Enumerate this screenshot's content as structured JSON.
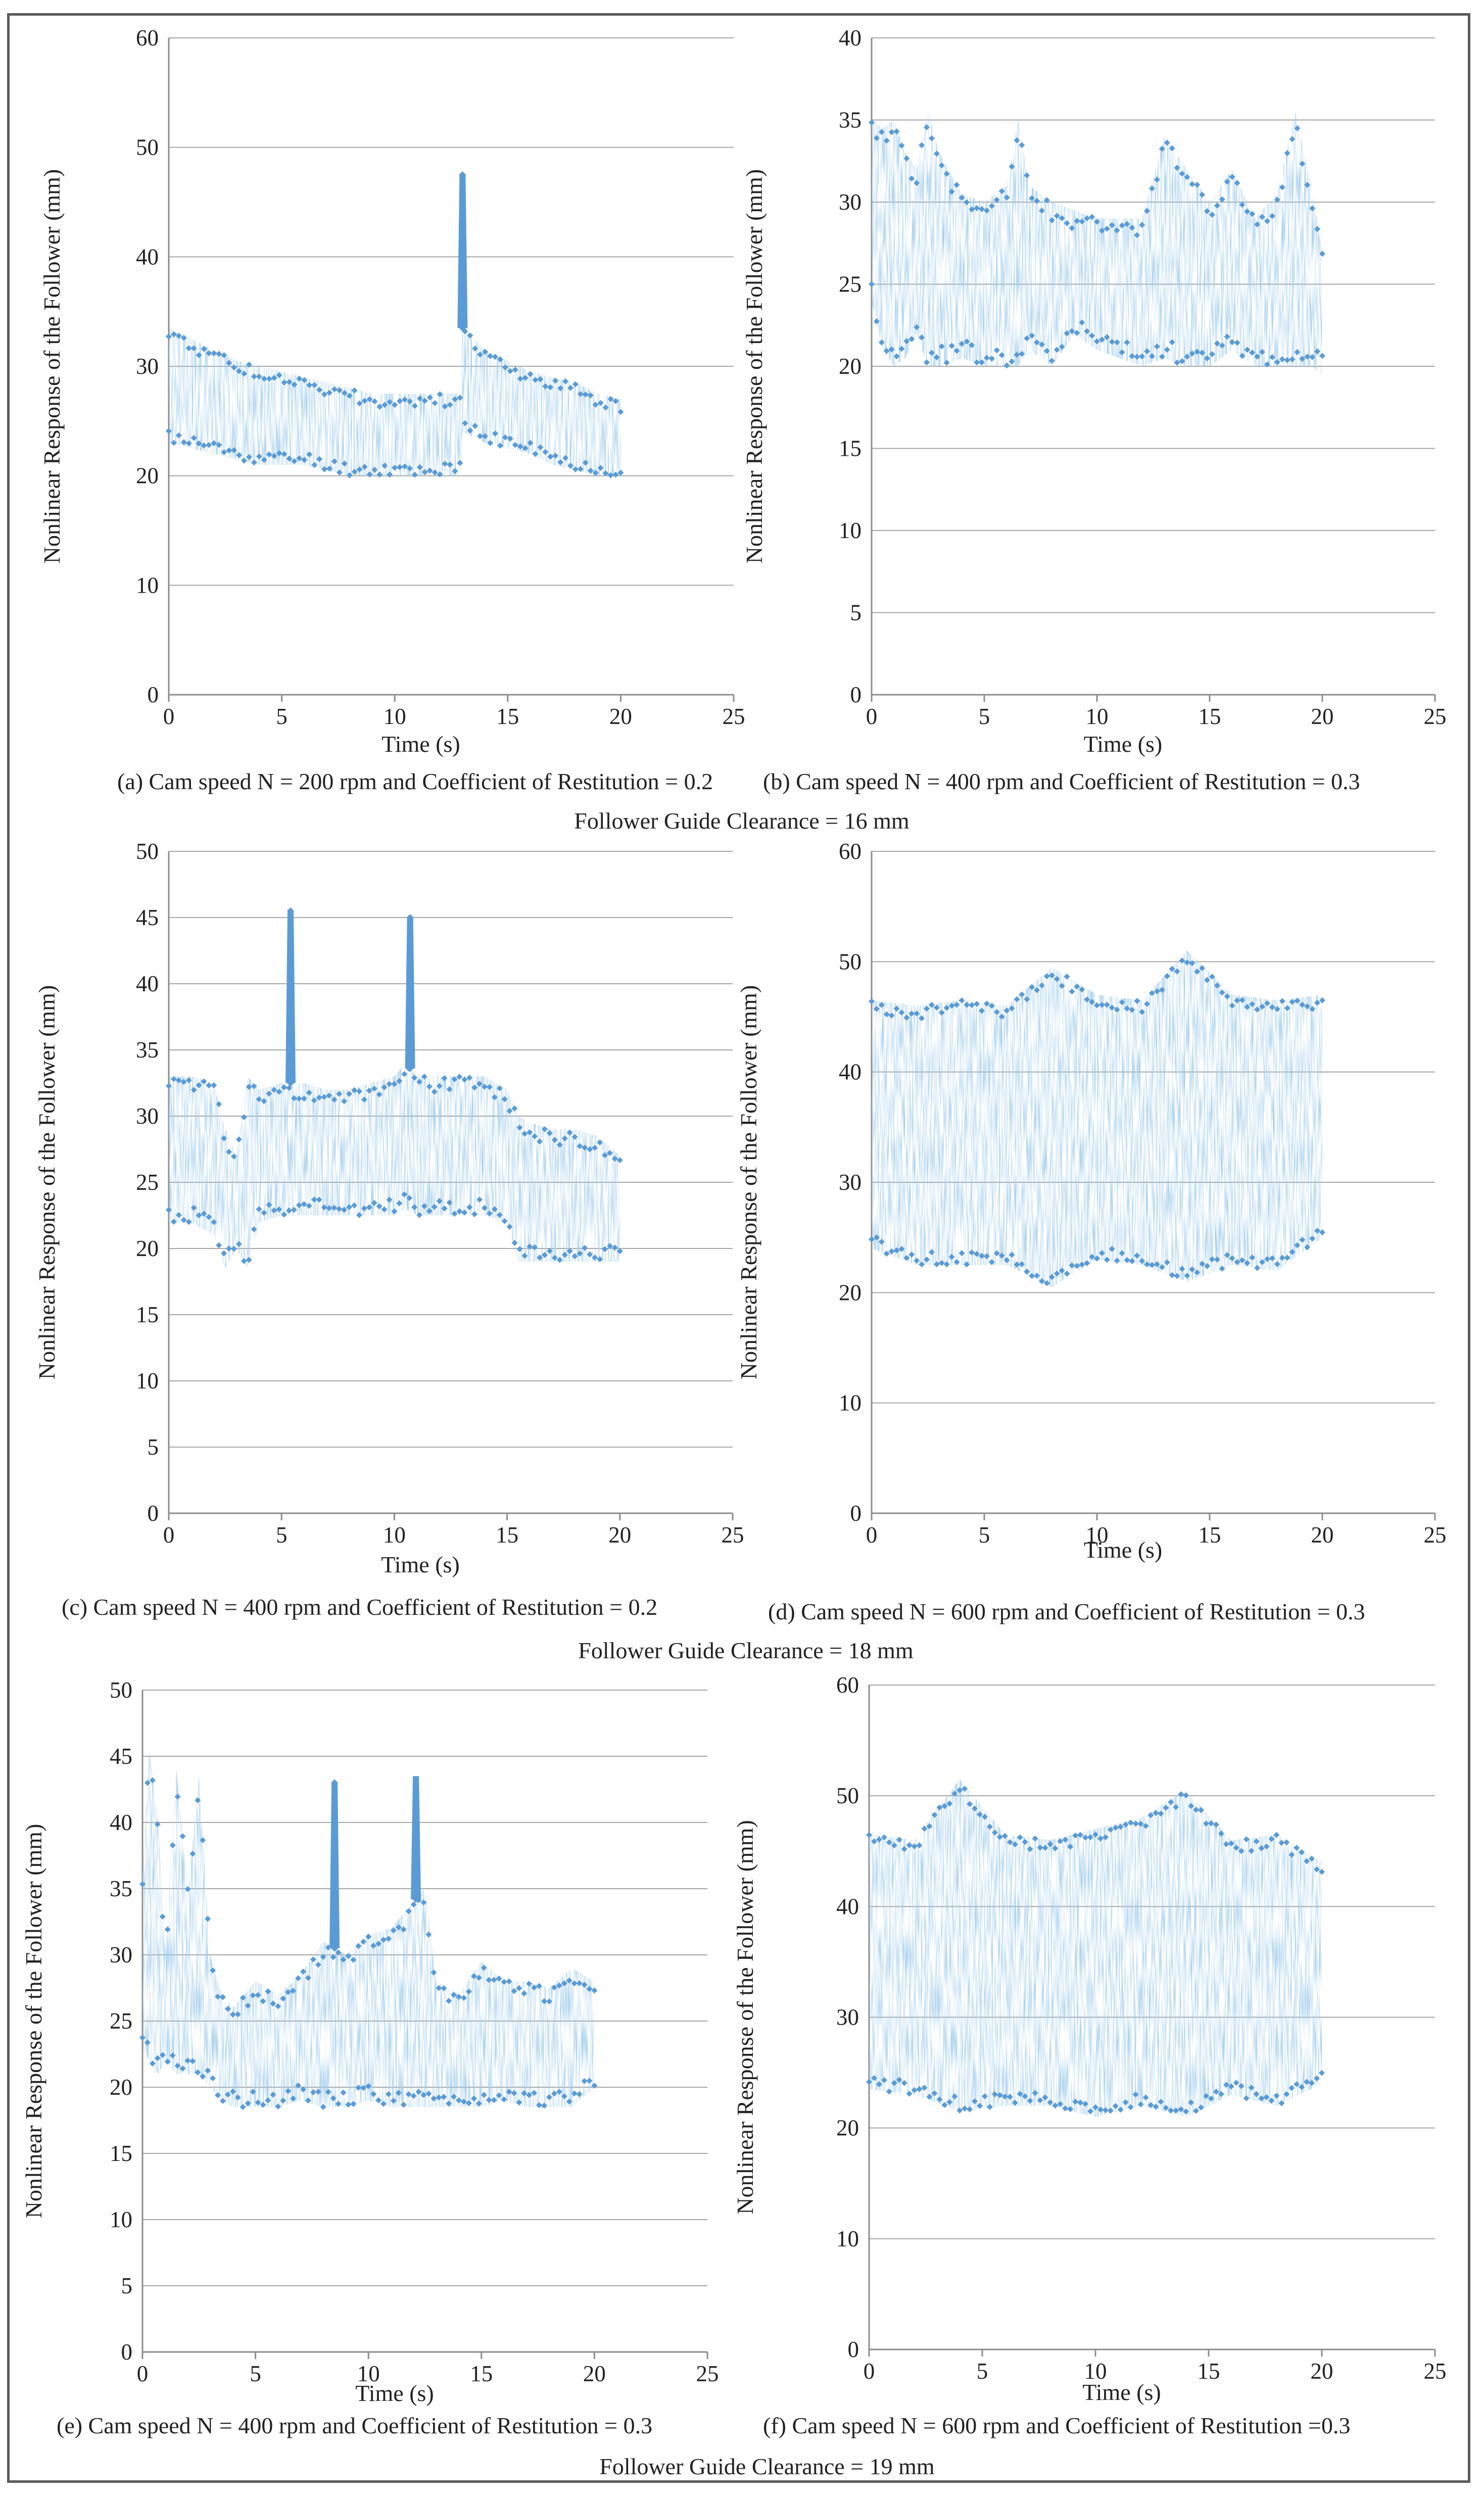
{
  "style": {
    "series_color": "#5b9bd5",
    "grid_color": "#a6a6a6",
    "axis_color": "#8c8c8c",
    "text_color": "#222222"
  },
  "group_labels": [
    "Follower Guide Clearance = 16 mm",
    "Follower Guide Clearance = 18 mm",
    "Follower Guide Clearance = 19 mm"
  ],
  "chart_data": [
    {
      "id": "a",
      "type": "scatter",
      "caption": "(a) Cam speed N = 200 rpm and Coefficient of Restitution = 0.2",
      "xlabel": "Time (s)",
      "ylabel": "Nonlinear Response of the Follower (mm)",
      "xlim": [
        0,
        25
      ],
      "ylim": [
        0,
        60
      ],
      "xticks": [
        0,
        5,
        10,
        15,
        20,
        25
      ],
      "yticks": [
        0,
        10,
        20,
        30,
        40,
        50,
        60
      ],
      "band": {
        "t": [
          0,
          1,
          2,
          3,
          4,
          5,
          6,
          7,
          8,
          9,
          10,
          11,
          12,
          12.9,
          13.0,
          14,
          15,
          16,
          17,
          18,
          19,
          20
        ],
        "upper": [
          33.5,
          32.5,
          31.5,
          30.5,
          30,
          29.5,
          29,
          28.5,
          28,
          27.5,
          27.5,
          27.5,
          27.5,
          27.5,
          33.5,
          31.5,
          30.5,
          29.5,
          29,
          28.5,
          27.5,
          27
        ],
        "lower": [
          23,
          22.5,
          22,
          21.5,
          21,
          21,
          21,
          20.5,
          20,
          20,
          20,
          20,
          20,
          20,
          24,
          23,
          22.5,
          22,
          21,
          20.5,
          20,
          20
        ]
      },
      "spikes": [
        {
          "t": 13.0,
          "y": 47.5
        }
      ]
    },
    {
      "id": "b",
      "type": "scatter",
      "caption": "(b) Cam speed N = 400 rpm and Coefficient of Restitution = 0.3",
      "xlabel": "Time (s)",
      "ylabel": "Nonlinear Response of the Follower (mm)",
      "xlim": [
        0,
        25
      ],
      "ylim": [
        0,
        40
      ],
      "xticks": [
        0,
        5,
        10,
        15,
        20,
        25
      ],
      "yticks": [
        0,
        5,
        10,
        15,
        20,
        25,
        30,
        35,
        40
      ],
      "band": {
        "t": [
          0,
          0.5,
          1,
          1.5,
          2,
          2.5,
          3,
          4,
          5,
          6,
          6.5,
          7,
          8,
          9,
          10,
          11,
          12,
          13,
          14,
          15,
          16,
          17,
          18,
          18.8,
          19.5,
          20
        ],
        "upper": [
          35,
          34.5,
          35,
          33,
          32,
          35.5,
          33,
          30.5,
          30,
          31,
          35,
          31,
          30,
          29.5,
          29,
          29,
          29,
          34,
          32,
          30,
          32,
          29,
          30.5,
          35.5,
          31,
          27
        ],
        "lower": [
          24,
          21,
          20,
          20.5,
          22,
          20,
          20,
          20.5,
          20,
          20,
          20,
          21,
          20,
          22,
          21,
          20.5,
          20,
          20.5,
          20,
          20,
          21,
          20,
          20,
          20,
          20,
          19.5
        ]
      },
      "spikes": []
    },
    {
      "id": "c",
      "type": "scatter",
      "caption": "(c) Cam speed N = 400 rpm and Coefficient of Restitution = 0.2",
      "xlabel": "Time (s)",
      "ylabel": "Nonlinear Response of the Follower (mm)",
      "xlim": [
        0,
        25
      ],
      "ylim": [
        0,
        50
      ],
      "xticks": [
        0,
        5,
        10,
        15,
        20,
        25
      ],
      "yticks": [
        0,
        5,
        10,
        15,
        20,
        25,
        30,
        35,
        40,
        45,
        50
      ],
      "band": {
        "t": [
          0,
          1,
          2,
          2.5,
          3,
          3.5,
          4,
          5,
          6,
          7,
          8,
          9,
          10,
          10.5,
          11,
          12,
          13,
          14,
          15,
          15.5,
          16,
          17,
          18,
          19,
          20
        ],
        "upper": [
          33,
          33,
          32.5,
          29,
          27,
          33,
          32,
          32.5,
          32.5,
          32,
          32,
          32.5,
          33,
          34,
          33,
          33,
          33,
          33,
          32,
          30,
          29.5,
          29,
          29,
          28.5,
          27
        ],
        "lower": [
          22,
          22,
          21,
          18.5,
          20,
          18.5,
          22,
          22.5,
          22.5,
          22.5,
          22.5,
          22.5,
          22.5,
          23,
          22.5,
          22.5,
          22.5,
          22.5,
          22,
          19,
          19,
          19,
          19,
          19,
          19
        ]
      },
      "spikes": [
        {
          "t": 5.4,
          "y": 45.5
        },
        {
          "t": 10.7,
          "y": 45
        }
      ]
    },
    {
      "id": "d",
      "type": "scatter",
      "caption": "(d) Cam speed N = 600 rpm and Coefficient of Restitution = 0.3",
      "xlabel": "Time (s)",
      "ylabel": "Nonlinear Response of the Follower (mm)",
      "xlim": [
        0,
        25
      ],
      "ylim": [
        0,
        60
      ],
      "xticks": [
        0,
        5,
        10,
        15,
        20,
        25
      ],
      "yticks": [
        0,
        10,
        20,
        30,
        40,
        50,
        60
      ],
      "band": {
        "t": [
          0,
          2,
          4,
          6,
          8,
          10,
          12,
          14,
          16,
          18,
          20
        ],
        "upper": [
          46.5,
          46,
          46.5,
          46,
          49.5,
          47,
          46.5,
          51,
          47,
          46.5,
          47
        ],
        "lower": [
          24,
          22.5,
          22.5,
          22.5,
          20.5,
          23,
          22.5,
          21,
          22.5,
          22,
          25
        ]
      },
      "spikes": []
    },
    {
      "id": "e",
      "type": "scatter",
      "caption": "(e) Cam speed N = 400 rpm and Coefficient of Restitution = 0.3",
      "xlabel": "Time (s)",
      "ylabel": "Nonlinear Response of the Follower (mm)",
      "xlim": [
        0,
        25
      ],
      "ylim": [
        0,
        50
      ],
      "xticks": [
        0,
        5,
        10,
        15,
        20,
        25
      ],
      "yticks": [
        0,
        5,
        10,
        15,
        20,
        25,
        30,
        35,
        40,
        45,
        50
      ],
      "band": {
        "t": [
          0,
          0.3,
          0.7,
          1,
          1.5,
          2,
          2.5,
          3,
          3.5,
          4,
          5,
          6,
          7,
          8,
          9,
          10,
          11,
          12.5,
          13,
          14,
          15,
          16,
          17,
          18,
          19,
          20
        ],
        "upper": [
          36,
          45.5,
          40,
          30,
          44,
          35,
          43.5,
          30,
          27,
          26,
          28,
          27,
          28.5,
          31,
          30,
          31.5,
          32,
          35,
          28,
          27,
          29.5,
          28,
          28,
          27.5,
          29,
          28
        ],
        "lower": [
          23,
          22,
          21,
          22,
          21,
          21,
          21,
          20,
          19,
          18.5,
          18.5,
          18.5,
          19,
          18.5,
          18.5,
          19,
          18.5,
          18.5,
          18.5,
          18.5,
          18.5,
          19,
          18.5,
          18.5,
          18.5,
          20
        ]
      },
      "spikes": [
        {
          "t": 8.5,
          "y": 43
        },
        {
          "t": 12.1,
          "y": 43.5
        }
      ]
    },
    {
      "id": "f",
      "type": "scatter",
      "caption": "(f) Cam speed N = 600 rpm and Coefficient of Restitution =0.3",
      "xlabel": "Time (s)",
      "ylabel": "Nonlinear Response of the Follower (mm)",
      "xlim": [
        0,
        25
      ],
      "ylim": [
        0,
        60
      ],
      "xticks": [
        0,
        5,
        10,
        15,
        20,
        25
      ],
      "yticks": [
        0,
        10,
        20,
        30,
        40,
        50,
        60
      ],
      "band": {
        "t": [
          0,
          2,
          4,
          6,
          8,
          10,
          12,
          14,
          16,
          18,
          20
        ],
        "upper": [
          46.5,
          46,
          51.5,
          46.5,
          46,
          47,
          48,
          50.5,
          46,
          46.5,
          44
        ],
        "lower": [
          23.5,
          23,
          21.5,
          22,
          22,
          21,
          22,
          21,
          23,
          22,
          24
        ]
      },
      "spikes": []
    }
  ]
}
